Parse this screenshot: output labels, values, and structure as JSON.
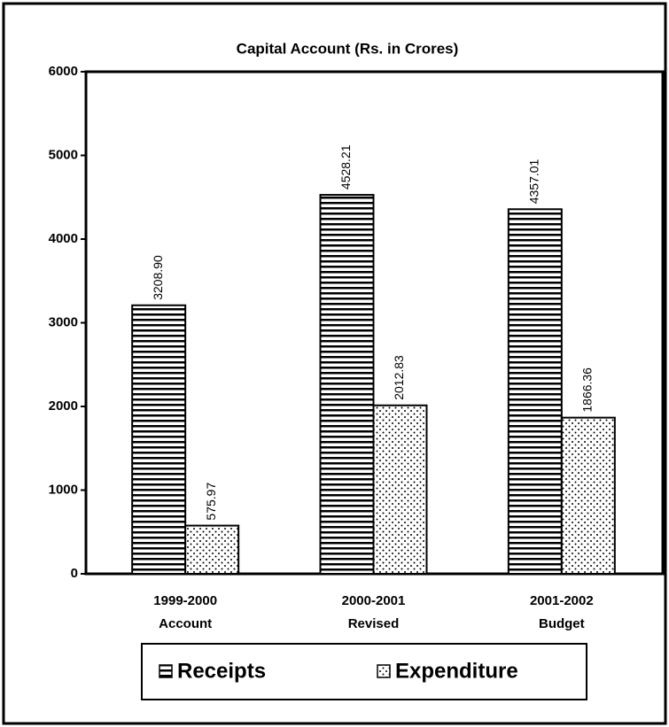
{
  "chart_data": {
    "type": "bar",
    "title": "Capital Account (Rs. in Crores)",
    "categories": [
      [
        "1999-2000",
        "Account"
      ],
      [
        "2000-2001",
        "Revised"
      ],
      [
        "2001-2002",
        "Budget"
      ]
    ],
    "series": [
      {
        "name": "Receipts",
        "color": "#000000",
        "values": [
          3208.9,
          4528.21,
          4357.01
        ],
        "value_labels": [
          "3208.90",
          "4528.21",
          "4357.01"
        ]
      },
      {
        "name": "Expenditure",
        "color": "#000000",
        "values": [
          575.97,
          2012.83,
          1866.36
        ],
        "value_labels": [
          "575.97",
          "2012.83",
          "1866.36"
        ]
      }
    ],
    "ylim": [
      0,
      6000
    ],
    "yticks": [
      0,
      1000,
      2000,
      3000,
      4000,
      5000,
      6000
    ],
    "grid": false
  }
}
